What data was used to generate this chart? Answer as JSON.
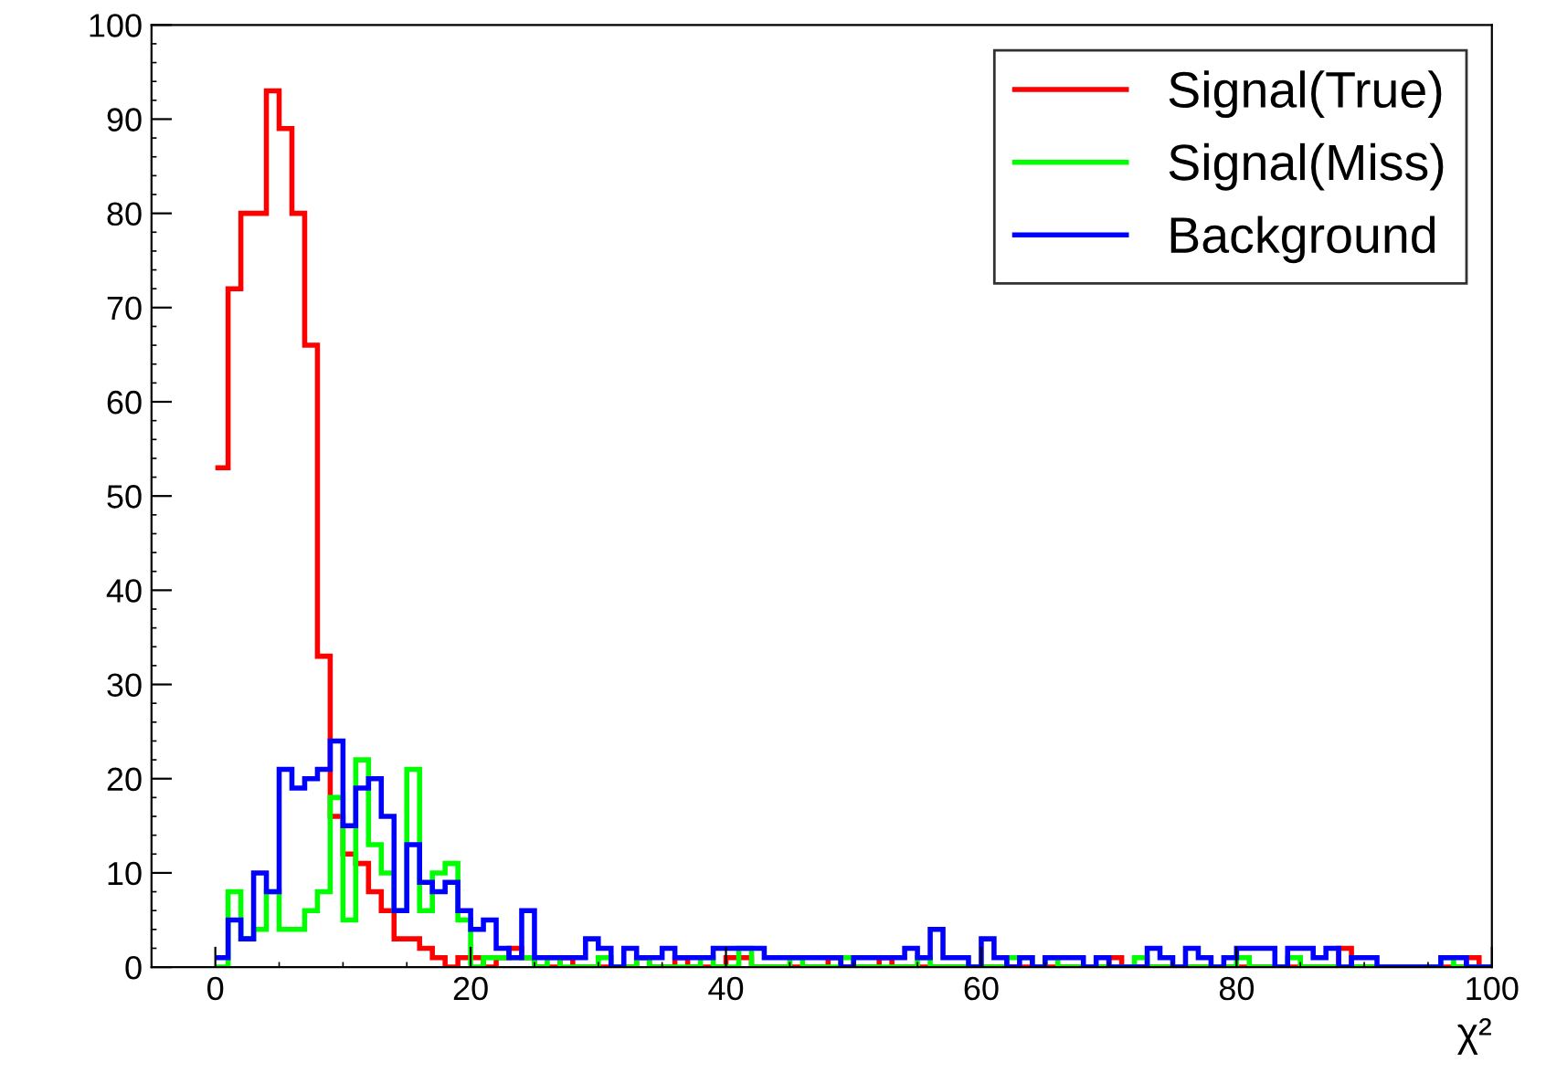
{
  "chart_data": {
    "type": "histogram",
    "xlabel": "χ²",
    "bins": [
      0,
      1,
      2,
      3,
      4,
      5,
      6,
      7,
      8,
      9,
      10,
      11,
      12,
      13,
      14,
      15,
      16,
      17,
      18,
      19,
      20,
      21,
      22,
      23,
      24,
      25,
      26,
      27,
      28,
      29,
      30,
      31,
      32,
      33,
      34,
      35,
      36,
      37,
      38,
      39,
      40,
      41,
      42,
      43,
      44,
      45,
      46,
      47,
      48,
      49,
      50,
      51,
      52,
      53,
      54,
      55,
      56,
      57,
      58,
      59,
      60,
      61,
      62,
      63,
      64,
      65,
      66,
      67,
      68,
      69,
      70,
      71,
      72,
      73,
      74,
      75,
      76,
      77,
      78,
      79,
      80,
      81,
      82,
      83,
      84,
      85,
      86,
      87,
      88,
      89,
      90,
      91,
      92,
      93,
      94,
      95,
      96,
      97,
      98,
      99,
      100
    ],
    "series": [
      {
        "name": "Signal(True)",
        "color": "#ff0000",
        "values": [
          53,
          72,
          80,
          80,
          93,
          89,
          80,
          66,
          33,
          16,
          12,
          11,
          8,
          6,
          3,
          3,
          2,
          1,
          0,
          1,
          1,
          0,
          1,
          2,
          1,
          0,
          0,
          1,
          0,
          0,
          0,
          0,
          0,
          1,
          0,
          0,
          1,
          0,
          0,
          0,
          1,
          1,
          0,
          0,
          0,
          0,
          0,
          0,
          1,
          0,
          0,
          0,
          1,
          0,
          0,
          0,
          0,
          0,
          0,
          0,
          0,
          0,
          0,
          0,
          0,
          0,
          0,
          0,
          0,
          0,
          1,
          0,
          0,
          0,
          0,
          0,
          0,
          0,
          0,
          0,
          0,
          0,
          0,
          0,
          0,
          0,
          0,
          0,
          2,
          0,
          0,
          0,
          0,
          0,
          0,
          0,
          0,
          0,
          1,
          0
        ]
      },
      {
        "name": "Signal(Miss)",
        "color": "#00ff00",
        "values": [
          0,
          8,
          3,
          4,
          8,
          4,
          4,
          6,
          8,
          18,
          5,
          22,
          13,
          10,
          6,
          21,
          6,
          10,
          11,
          5,
          0,
          1,
          1,
          1,
          1,
          0,
          1,
          0,
          0,
          0,
          1,
          0,
          0,
          1,
          0,
          0,
          0,
          0,
          1,
          0,
          0,
          2,
          0,
          0,
          0,
          1,
          0,
          0,
          0,
          1,
          0,
          0,
          0,
          0,
          0,
          1,
          0,
          0,
          0,
          0,
          0,
          0,
          1,
          1,
          0,
          1,
          0,
          0,
          0,
          0,
          0,
          0,
          1,
          0,
          0,
          0,
          0,
          0,
          0,
          0,
          1,
          0,
          0,
          0,
          1,
          0,
          0,
          0,
          0,
          0,
          0,
          0,
          0,
          0,
          0,
          0,
          1,
          0,
          0,
          0
        ]
      },
      {
        "name": "Background",
        "color": "#0000ff",
        "values": [
          1,
          5,
          3,
          10,
          8,
          21,
          19,
          20,
          21,
          24,
          15,
          19,
          20,
          16,
          6,
          13,
          9,
          8,
          9,
          6,
          4,
          5,
          2,
          1,
          6,
          1,
          1,
          1,
          1,
          3,
          2,
          0,
          2,
          1,
          1,
          2,
          1,
          1,
          1,
          2,
          2,
          2,
          2,
          1,
          1,
          1,
          1,
          1,
          1,
          0,
          1,
          1,
          1,
          1,
          2,
          1,
          4,
          1,
          1,
          0,
          3,
          1,
          0,
          1,
          0,
          1,
          1,
          1,
          0,
          1,
          0,
          0,
          0,
          2,
          1,
          0,
          2,
          1,
          0,
          1,
          2,
          2,
          2,
          0,
          2,
          2,
          1,
          2,
          0,
          1,
          1,
          0,
          0,
          0,
          0,
          0,
          1,
          1,
          0,
          0
        ]
      }
    ],
    "xlim": [
      -5,
      100
    ],
    "xticks": [
      0,
      20,
      40,
      60,
      80,
      100
    ],
    "ylim": [
      0,
      100
    ],
    "yticks": [
      0,
      10,
      20,
      30,
      40,
      50,
      60,
      70,
      80,
      90,
      100
    ],
    "legend": "top right",
    "grid": false
  }
}
